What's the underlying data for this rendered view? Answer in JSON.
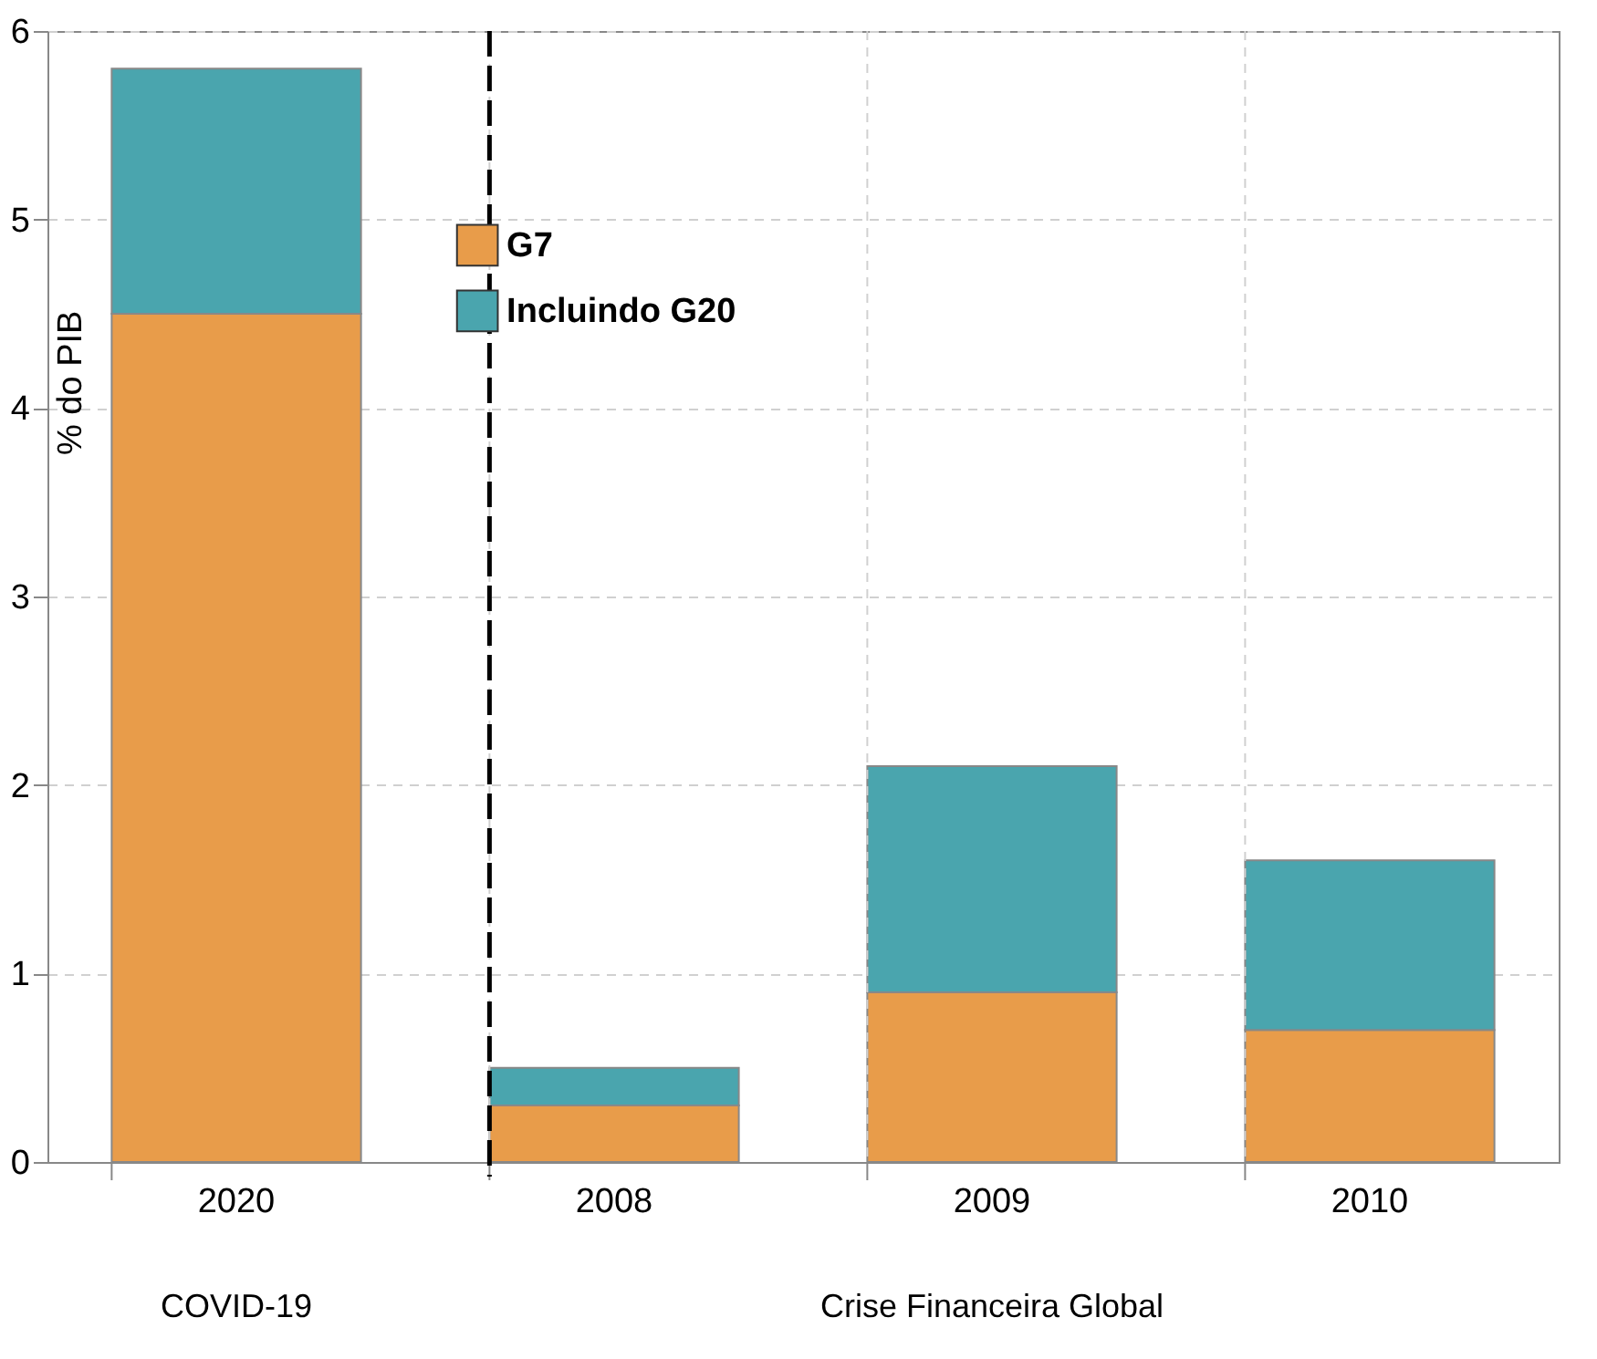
{
  "chart_data": {
    "type": "bar",
    "stacked": true,
    "ylabel": "% do PIB",
    "categories": [
      "2020",
      "2008",
      "2009",
      "2010"
    ],
    "series": [
      {
        "name": "G7",
        "color": "#e89c4a",
        "values": [
          4.5,
          0.3,
          0.9,
          0.7
        ]
      },
      {
        "name": "Incluindo G20",
        "color": "#4aa5ae",
        "values": [
          1.3,
          0.2,
          1.2,
          0.9
        ]
      }
    ],
    "ylim": [
      0,
      6
    ],
    "yticks": [
      0,
      1,
      2,
      3,
      4,
      5,
      6
    ],
    "grid": true,
    "legend": "top left",
    "ref_lines": [
      {
        "axis": "x",
        "value": "2008",
        "color": "#000000",
        "line_style": "dashed"
      }
    ],
    "annotations": [
      "COVID-19",
      "Crise Financeira Global"
    ]
  }
}
